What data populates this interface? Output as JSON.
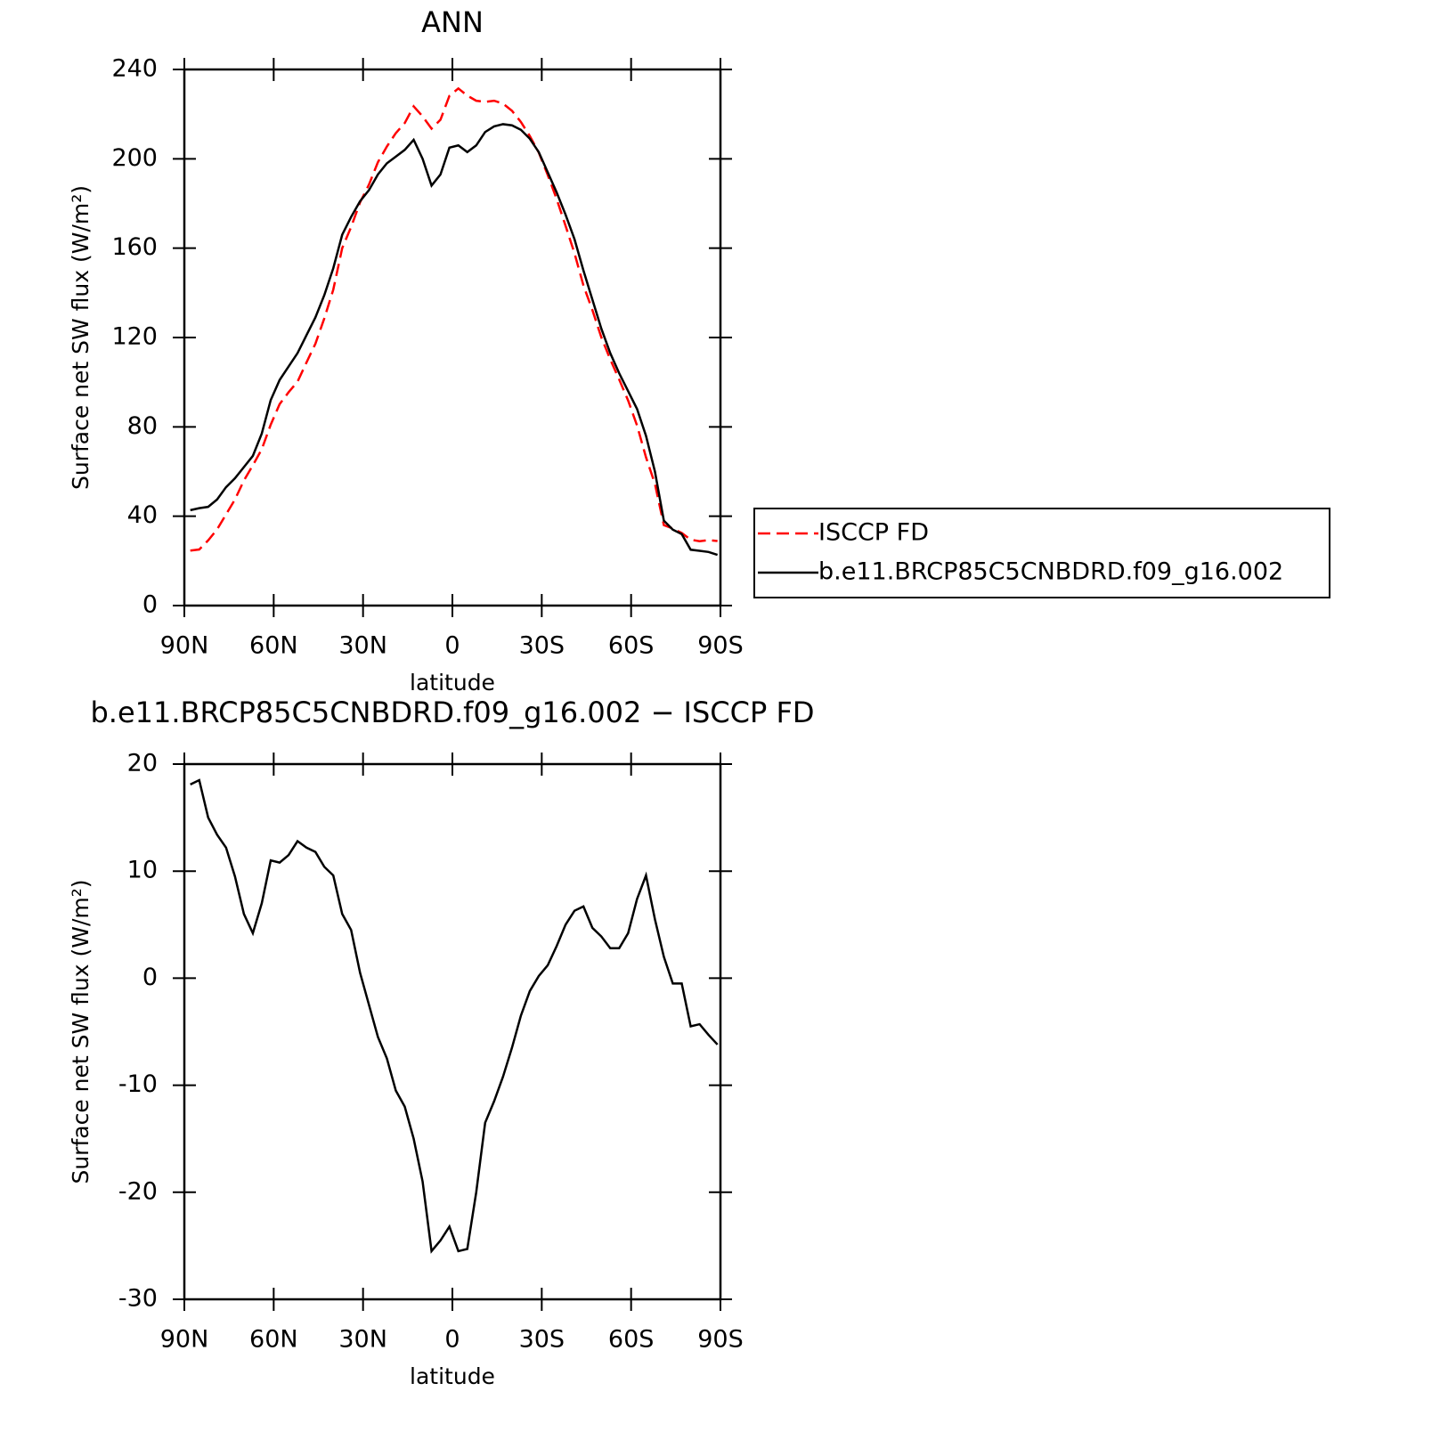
{
  "chart_data": [
    {
      "type": "line",
      "title": "ANN",
      "x_label": "latitude",
      "y_label": "Surface net SW flux (W/m²)",
      "x": [
        88,
        85,
        82,
        79,
        76,
        73,
        70,
        67,
        64,
        61,
        58,
        55,
        52,
        49,
        46,
        43,
        40,
        37,
        34,
        31,
        28,
        25,
        22,
        19,
        16,
        13,
        10,
        7,
        4,
        1,
        -2,
        -5,
        -8,
        -11,
        -14,
        -17,
        -20,
        -23,
        -26,
        -29,
        -32,
        -35,
        -38,
        -41,
        -44,
        -47,
        -50,
        -53,
        -56,
        -59,
        -62,
        -65,
        -68,
        -71,
        -74,
        -77,
        -80,
        -83,
        -86,
        -89
      ],
      "series": [
        {
          "name": "ISCCP FD",
          "color": "#ff0000",
          "line_style": "dashed",
          "values": [
            24.6,
            25.1,
            29.2,
            34.1,
            40.8,
            47.5,
            56,
            62.8,
            70,
            81,
            90.2,
            95.5,
            100.2,
            108.8,
            117.2,
            128.6,
            141.4,
            160,
            169.5,
            180.5,
            188.5,
            198.5,
            205.5,
            211.5,
            216,
            223.5,
            219,
            213.5,
            217.5,
            228.2,
            231.5,
            228.3,
            226,
            225.5,
            226,
            224.7,
            221.5,
            216.5,
            210.2,
            202.8,
            192.8,
            182,
            170,
            157.7,
            143.3,
            132.3,
            120.1,
            110.2,
            101.2,
            91.8,
            80.6,
            66.4,
            54.5,
            36,
            34.5,
            32.5,
            29.5,
            28.8,
            29.3,
            28.9
          ]
        },
        {
          "name": "b.e11.BRCP85C5CNBDRD.f09_g16.002",
          "color": "#000000",
          "line_style": "solid",
          "values": [
            42.7,
            43.6,
            44.2,
            47.5,
            53,
            57,
            62,
            67,
            77,
            92,
            101,
            107,
            113,
            121,
            129,
            139,
            151,
            166,
            174,
            181,
            186,
            193,
            198,
            201,
            204,
            208.5,
            200,
            188,
            193,
            205,
            206,
            203,
            206,
            212,
            214.5,
            215.5,
            215,
            213,
            209,
            203,
            194,
            185,
            175,
            164,
            150,
            137,
            124,
            113,
            104,
            96,
            88,
            76,
            60,
            38,
            34,
            32,
            25,
            24.5,
            24,
            22.7
          ]
        }
      ],
      "xlim": [
        90,
        -90
      ],
      "xticks": [
        {
          "value": 90,
          "label": "90N"
        },
        {
          "value": 60,
          "label": "60N"
        },
        {
          "value": 30,
          "label": "30N"
        },
        0,
        {
          "value": -30,
          "label": "30S"
        },
        {
          "value": -60,
          "label": "60S"
        },
        {
          "value": -90,
          "label": "90S"
        }
      ],
      "ylim": [
        0,
        240
      ],
      "yticks": [
        0,
        40,
        80,
        120,
        160,
        200,
        240
      ],
      "legend": "right"
    },
    {
      "type": "line",
      "title": "b.e11.BRCP85C5CNBDRD.f09_g16.002 − ISCCP FD",
      "x_label": "latitude",
      "y_label": "Surface net SW flux (W/m²)",
      "x": [
        88,
        85,
        82,
        79,
        76,
        73,
        70,
        67,
        64,
        61,
        58,
        55,
        52,
        49,
        46,
        43,
        40,
        37,
        34,
        31,
        28,
        25,
        22,
        19,
        16,
        13,
        10,
        7,
        4,
        1,
        -2,
        -5,
        -8,
        -11,
        -14,
        -17,
        -20,
        -23,
        -26,
        -29,
        -32,
        -35,
        -38,
        -41,
        -44,
        -47,
        -50,
        -53,
        -56,
        -59,
        -62,
        -65,
        -68,
        -71,
        -74,
        -77,
        -80,
        -83,
        -86,
        -89
      ],
      "color": "#000000",
      "values": [
        18.1,
        18.5,
        15,
        13.4,
        12.2,
        9.5,
        6,
        4.2,
        7,
        11,
        10.8,
        11.5,
        12.8,
        12.2,
        11.8,
        10.4,
        9.6,
        6,
        4.5,
        0.5,
        -2.5,
        -5.5,
        -7.5,
        -10.5,
        -12,
        -15,
        -19,
        -25.5,
        -24.5,
        -23.2,
        -25.5,
        -25.3,
        -20,
        -13.5,
        -11.5,
        -9.2,
        -6.5,
        -3.5,
        -1.2,
        0.2,
        1.2,
        3,
        5,
        6.3,
        6.7,
        4.7,
        3.9,
        2.8,
        2.8,
        4.2,
        7.4,
        9.6,
        5.5,
        2,
        -0.5,
        -0.5,
        -4.5,
        -4.3,
        -5.3,
        -6.2
      ],
      "xlim": [
        90,
        -90
      ],
      "xticks": [
        {
          "value": 90,
          "label": "90N"
        },
        {
          "value": 60,
          "label": "60N"
        },
        {
          "value": 30,
          "label": "30N"
        },
        0,
        {
          "value": -30,
          "label": "30S"
        },
        {
          "value": -60,
          "label": "60S"
        },
        {
          "value": -90,
          "label": "90S"
        }
      ],
      "ylim": [
        -30,
        20
      ],
      "yticks": [
        -30,
        -20,
        -10,
        0,
        10,
        20
      ]
    }
  ]
}
